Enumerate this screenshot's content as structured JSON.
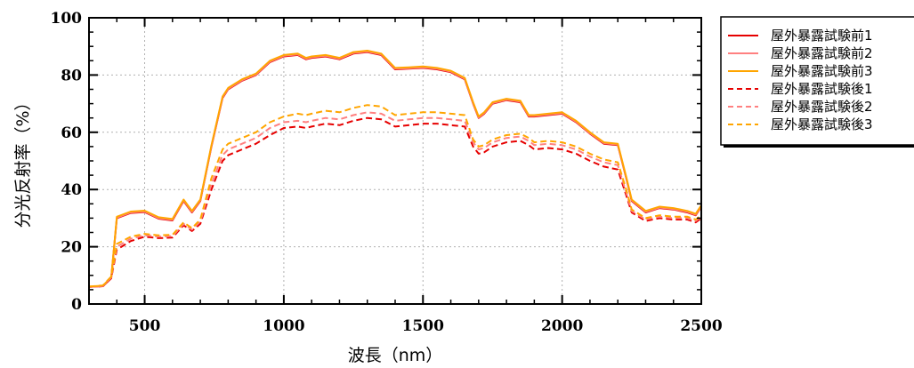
{
  "chart_data": {
    "type": "line",
    "title": "",
    "xlabel": "波長（nm）",
    "ylabel": "分光反射率（%）",
    "xlim": [
      300,
      2500
    ],
    "ylim": [
      0,
      100
    ],
    "xticks": [
      500,
      1000,
      1500,
      2000,
      2500
    ],
    "yticks": [
      0,
      20,
      40,
      60,
      80,
      100
    ],
    "grid": true,
    "legend_position": "right",
    "series": [
      {
        "name": "屋外暴露試験前1",
        "color": "#e60000",
        "style": "solid",
        "x": [
          300,
          350,
          380,
          400,
          450,
          500,
          550,
          600,
          640,
          670,
          700,
          740,
          780,
          800,
          850,
          900,
          950,
          1000,
          1050,
          1080,
          1100,
          1150,
          1200,
          1250,
          1300,
          1350,
          1400,
          1450,
          1500,
          1550,
          1600,
          1650,
          1680,
          1700,
          1720,
          1750,
          1800,
          1850,
          1880,
          1900,
          1950,
          2000,
          2050,
          2100,
          2150,
          2200,
          2230,
          2250,
          2300,
          2350,
          2400,
          2450,
          2480,
          2500
        ],
        "y": [
          6,
          6.2,
          9,
          30,
          31.8,
          32.1,
          29.8,
          29.2,
          36,
          32,
          36,
          55,
          72,
          75,
          78,
          80,
          84.5,
          86.5,
          87,
          85.5,
          86,
          86.5,
          85.5,
          87.5,
          88,
          87,
          82,
          82.2,
          82.5,
          82,
          81,
          78.5,
          70,
          65,
          66.5,
          70,
          71.2,
          70.5,
          65.5,
          65.5,
          66,
          66.5,
          63.5,
          59.5,
          56,
          55.5,
          44,
          36,
          32,
          33.5,
          33,
          32,
          31,
          34
        ]
      },
      {
        "name": "屋外暴露試験前2",
        "color": "#ff8080",
        "style": "solid",
        "x": [
          300,
          350,
          380,
          400,
          450,
          500,
          550,
          600,
          640,
          670,
          700,
          740,
          780,
          800,
          850,
          900,
          950,
          1000,
          1050,
          1080,
          1100,
          1150,
          1200,
          1250,
          1300,
          1350,
          1400,
          1450,
          1500,
          1550,
          1600,
          1650,
          1680,
          1700,
          1720,
          1750,
          1800,
          1850,
          1880,
          1900,
          1950,
          2000,
          2050,
          2100,
          2150,
          2200,
          2230,
          2250,
          2300,
          2350,
          2400,
          2450,
          2480,
          2500
        ],
        "y": [
          6,
          6.3,
          9.2,
          30.2,
          32,
          32.3,
          30,
          29.4,
          36.2,
          32.2,
          36.2,
          55.2,
          72.2,
          75.2,
          78.2,
          80.2,
          84.7,
          86.7,
          87.2,
          85.7,
          86.2,
          86.7,
          85.7,
          87.7,
          88.2,
          87.2,
          82.2,
          82.4,
          82.7,
          82.2,
          81.2,
          78.7,
          70.2,
          65.2,
          66.7,
          70.2,
          71.4,
          70.7,
          65.7,
          65.7,
          66.2,
          66.7,
          63.7,
          59.7,
          56.2,
          55.7,
          44.2,
          36.2,
          32.2,
          33.7,
          33.2,
          32.2,
          31.2,
          34.2
        ]
      },
      {
        "name": "屋外暴露試験前3",
        "color": "#ffa500",
        "style": "solid",
        "x": [
          300,
          350,
          380,
          400,
          450,
          500,
          550,
          600,
          640,
          670,
          700,
          740,
          780,
          800,
          850,
          900,
          950,
          1000,
          1050,
          1080,
          1100,
          1150,
          1200,
          1250,
          1300,
          1350,
          1400,
          1450,
          1500,
          1550,
          1600,
          1650,
          1680,
          1700,
          1720,
          1750,
          1800,
          1850,
          1880,
          1900,
          1950,
          2000,
          2050,
          2100,
          2150,
          2200,
          2230,
          2250,
          2300,
          2350,
          2400,
          2450,
          2480,
          2500
        ],
        "y": [
          6.1,
          6.4,
          9.4,
          30.5,
          32.3,
          32.6,
          30.3,
          29.7,
          36.5,
          32.5,
          36.5,
          55.5,
          72.5,
          75.5,
          78.5,
          80.5,
          85,
          87,
          87.5,
          86,
          86.5,
          87,
          86,
          88,
          88.5,
          87.5,
          82.5,
          82.7,
          83,
          82.5,
          81.5,
          79,
          70.5,
          65.5,
          67,
          70.5,
          71.7,
          71,
          66,
          66,
          66.5,
          67,
          64,
          60,
          56.5,
          56,
          44.5,
          36.5,
          32.5,
          34,
          33.5,
          32.5,
          31.5,
          34.5
        ]
      },
      {
        "name": "屋外暴露試験後1",
        "color": "#e60000",
        "style": "dashed",
        "x": [
          300,
          350,
          380,
          400,
          450,
          500,
          550,
          600,
          640,
          670,
          700,
          740,
          780,
          800,
          850,
          900,
          950,
          1000,
          1050,
          1080,
          1100,
          1150,
          1200,
          1250,
          1300,
          1350,
          1400,
          1450,
          1500,
          1550,
          1600,
          1650,
          1680,
          1700,
          1720,
          1750,
          1800,
          1850,
          1880,
          1900,
          1950,
          2000,
          2050,
          2100,
          2150,
          2200,
          2230,
          2250,
          2300,
          2350,
          2400,
          2450,
          2480,
          2500
        ],
        "y": [
          6,
          6.2,
          9,
          19,
          22,
          23.5,
          23,
          23.2,
          27.5,
          25.5,
          28,
          40,
          50,
          52,
          54,
          56,
          59,
          61.5,
          62,
          61.5,
          62,
          63,
          62.5,
          64,
          65,
          64.5,
          62,
          62.5,
          63,
          63,
          62.5,
          62,
          55,
          52.5,
          53,
          55,
          56.5,
          57,
          55.5,
          54,
          54.5,
          54,
          52.5,
          50,
          48,
          47,
          38,
          32,
          29,
          30,
          29.5,
          29.5,
          28.5,
          30
        ]
      },
      {
        "name": "屋外暴露試験後2",
        "color": "#ff8080",
        "style": "dashed",
        "x": [
          300,
          350,
          380,
          400,
          450,
          500,
          550,
          600,
          640,
          670,
          700,
          740,
          780,
          800,
          850,
          900,
          950,
          1000,
          1050,
          1080,
          1100,
          1150,
          1200,
          1250,
          1300,
          1350,
          1400,
          1450,
          1500,
          1550,
          1600,
          1650,
          1680,
          1700,
          1720,
          1750,
          1800,
          1850,
          1880,
          1900,
          1950,
          2000,
          2050,
          2100,
          2150,
          2200,
          2230,
          2250,
          2300,
          2350,
          2400,
          2450,
          2480,
          2500
        ],
        "y": [
          6,
          6.3,
          9.3,
          20,
          22.8,
          24,
          23.5,
          23.7,
          28,
          26,
          28.8,
          42,
          52,
          54,
          56,
          58,
          61.5,
          63.5,
          64,
          63.5,
          64,
          65,
          64.5,
          66,
          67,
          66.5,
          64,
          64.5,
          65,
          65,
          64.5,
          64,
          56.5,
          54,
          54.5,
          56.5,
          58,
          58.5,
          57,
          55.5,
          56,
          55.5,
          54,
          51.5,
          49.5,
          48.5,
          39,
          32.5,
          29.5,
          30.5,
          30,
          30,
          29,
          30.5
        ]
      },
      {
        "name": "屋外暴露試験後3",
        "color": "#ffa500",
        "style": "dashed",
        "x": [
          300,
          350,
          380,
          400,
          450,
          500,
          550,
          600,
          640,
          670,
          700,
          740,
          780,
          800,
          850,
          900,
          950,
          1000,
          1050,
          1080,
          1100,
          1150,
          1200,
          1250,
          1300,
          1350,
          1400,
          1450,
          1500,
          1550,
          1600,
          1650,
          1680,
          1700,
          1720,
          1750,
          1800,
          1850,
          1880,
          1900,
          1950,
          2000,
          2050,
          2100,
          2150,
          2200,
          2230,
          2250,
          2300,
          2350,
          2400,
          2450,
          2480,
          2500
        ],
        "y": [
          6.1,
          6.5,
          9.6,
          21,
          23.5,
          24.5,
          24,
          24.2,
          28.5,
          26.5,
          29.5,
          44,
          54,
          56,
          58,
          60,
          63.5,
          65.5,
          66.5,
          66,
          66.5,
          67.5,
          67,
          68.5,
          69.5,
          69,
          66,
          66.5,
          67,
          67,
          66.5,
          66,
          57.5,
          55,
          55.5,
          57.5,
          59,
          59.5,
          58,
          56.5,
          57,
          56.5,
          55,
          52.5,
          50.5,
          49.5,
          40,
          33,
          30,
          31,
          30.5,
          30.5,
          29.5,
          31
        ]
      }
    ]
  }
}
